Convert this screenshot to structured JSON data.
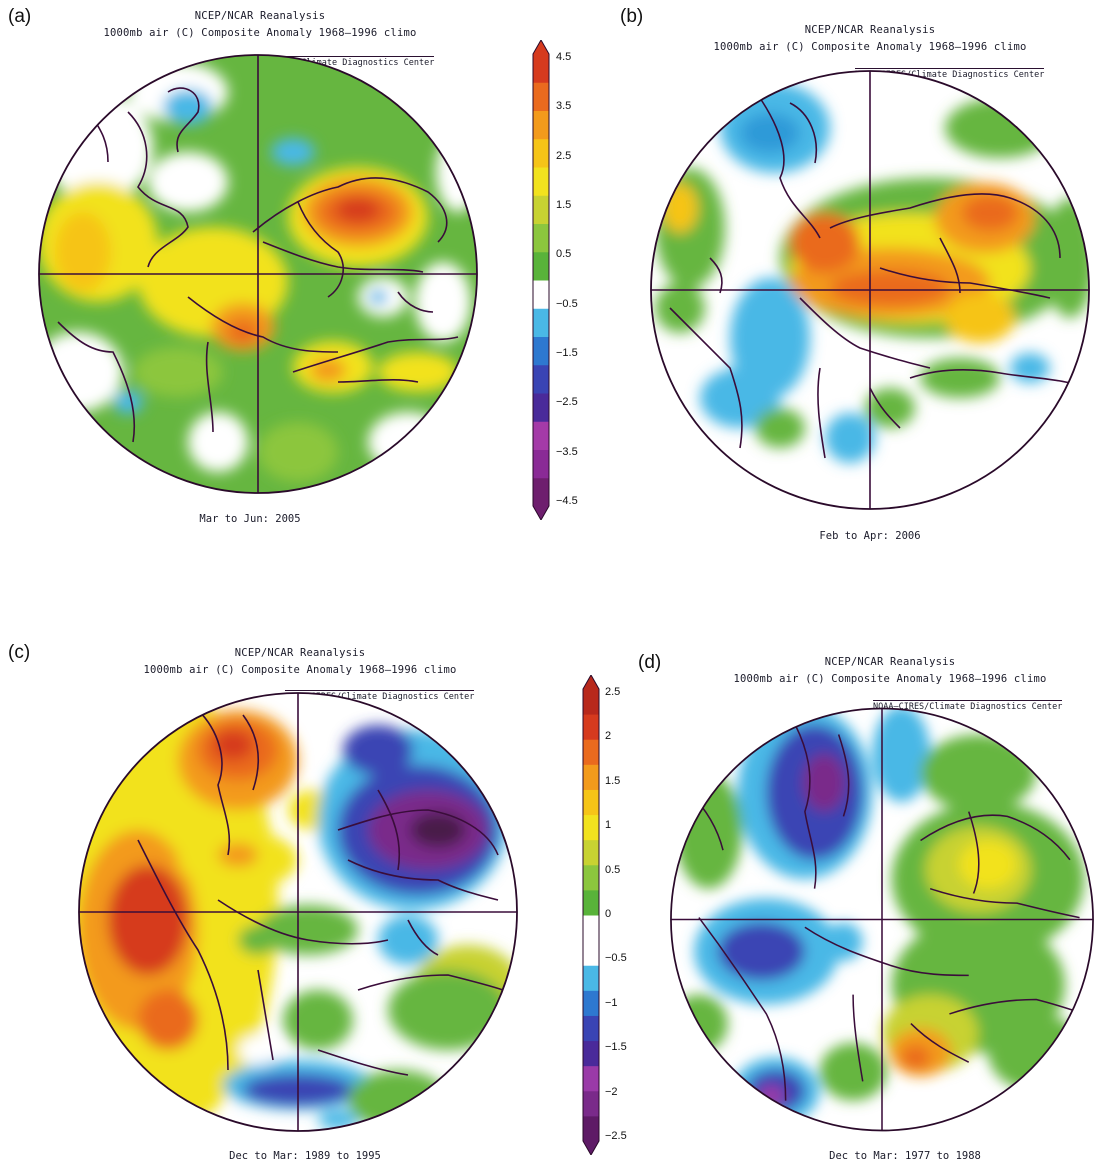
{
  "figure": {
    "header_line1": "NCEP/NCAR Reanalysis",
    "header_line2": "1000mb air (C) Composite Anomaly 1968–1996 climo",
    "credit": "NOAA–CIRES/Climate Diagnostics Center"
  },
  "panels": [
    {
      "letter": "(a)",
      "period": "Mar to Jun: 2005"
    },
    {
      "letter": "(b)",
      "period": "Feb to Apr: 2006"
    },
    {
      "letter": "(c)",
      "period": "Dec to Mar: 1989 to 1995"
    },
    {
      "letter": "(d)",
      "period": "Dec to Mar: 1977 to 1988"
    }
  ],
  "colorbars": [
    {
      "labels": [
        "4.5",
        "3.5",
        "2.5",
        "1.5",
        "0.5",
        "−0.5",
        "−1.5",
        "−2.5",
        "−3.5",
        "−4.5"
      ],
      "colors": [
        "#6e1e6e",
        "#8a2a96",
        "#a43aa8",
        "#4a2a9a",
        "#3a44b4",
        "#2e78d0",
        "#4ab8e6",
        "#ffffff",
        "#59b33a",
        "#8cc63e",
        "#c8d232",
        "#f2e21e",
        "#f6c418",
        "#f39a1c",
        "#ea6a1e",
        "#d63a1e"
      ]
    },
    {
      "labels": [
        "2.5",
        "2",
        "1.5",
        "1",
        "0.5",
        "0",
        "−0.5",
        "−1",
        "−1.5",
        "−2",
        "−2.5"
      ],
      "colors": [
        "#5e1a66",
        "#7a2a8a",
        "#9a3aa8",
        "#4a2a9a",
        "#3a44b4",
        "#2e78d0",
        "#4ab8e6",
        "#ffffff",
        "#ffffff",
        "#59b33a",
        "#8cc63e",
        "#c8d232",
        "#f2e21e",
        "#f6c418",
        "#f39a1c",
        "#ea6a1e",
        "#d63a1e",
        "#b8281c"
      ]
    }
  ],
  "palette": {
    "coast": "#3a0d3a",
    "gridline": "#3a0d3a",
    "rim": "#2a0a2a"
  }
}
